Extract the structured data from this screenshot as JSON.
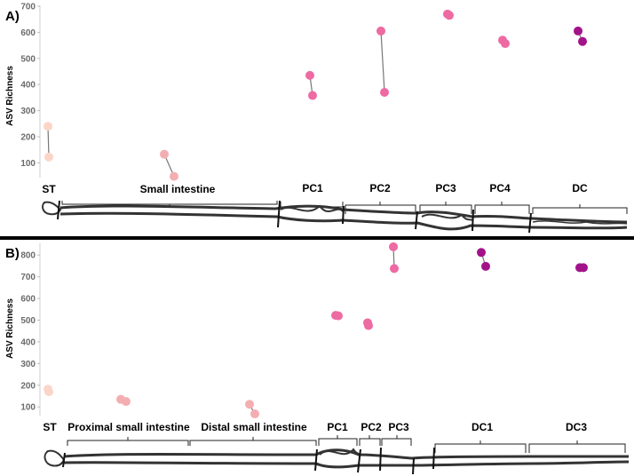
{
  "chart_data": [
    {
      "type": "scatter",
      "panel_label": "A)",
      "ylabel": "ASV Richness",
      "ylim": [
        40,
        700
      ],
      "yticks": [
        100,
        200,
        300,
        400,
        500,
        600,
        700
      ],
      "segments": [
        "ST",
        "Small intestine",
        "PC1",
        "PC2",
        "PC3",
        "PC4",
        "DC"
      ],
      "points": [
        {
          "segment": "ST",
          "values": [
            240,
            122
          ],
          "color": "#fbd5c8"
        },
        {
          "segment": "Small intestine",
          "values": [
            133,
            48
          ],
          "color": "#f4aeb2"
        },
        {
          "segment": "PC1",
          "values": [
            435,
            358
          ],
          "color": "#ee6aa3"
        },
        {
          "segment": "PC2",
          "values": [
            605,
            370
          ],
          "color": "#ee6aa3"
        },
        {
          "segment": "PC3",
          "values": [
            670,
            665
          ],
          "color": "#ee6aa3"
        },
        {
          "segment": "PC4",
          "values": [
            570,
            557
          ],
          "color": "#ee6aa3"
        },
        {
          "segment": "DC",
          "values": [
            605,
            565
          ],
          "color": "#a2138a"
        }
      ]
    },
    {
      "type": "scatter",
      "panel_label": "B)",
      "ylabel": "ASV Richness",
      "ylim": [
        60,
        850
      ],
      "yticks": [
        100,
        200,
        300,
        400,
        500,
        600,
        700,
        800
      ],
      "segments": [
        "ST",
        "Proximal small intestine",
        "Distal small intestine",
        "PC1",
        "PC2",
        "PC3",
        "DC1",
        "DC3"
      ],
      "points": [
        {
          "segment": "ST",
          "values": [
            182,
            170
          ],
          "color": "#fbd5c8"
        },
        {
          "segment": "Proximal small intestine",
          "values": [
            135,
            125
          ],
          "color": "#f4aeb2"
        },
        {
          "segment": "Distal small intestine",
          "values": [
            112,
            68
          ],
          "color": "#f4aeb2"
        },
        {
          "segment": "PC1",
          "values": [
            522,
            520
          ],
          "color": "#ee6aa3"
        },
        {
          "segment": "PC2",
          "values": [
            488,
            475
          ],
          "color": "#ee6aa3"
        },
        {
          "segment": "PC3",
          "values": [
            838,
            738
          ],
          "color": "#ee6aa3"
        },
        {
          "segment": "DC1",
          "values": [
            812,
            748
          ],
          "color": "#a2138a"
        },
        {
          "segment": "DC3",
          "values": [
            742,
            742
          ],
          "color": "#a2138a"
        }
      ]
    }
  ]
}
